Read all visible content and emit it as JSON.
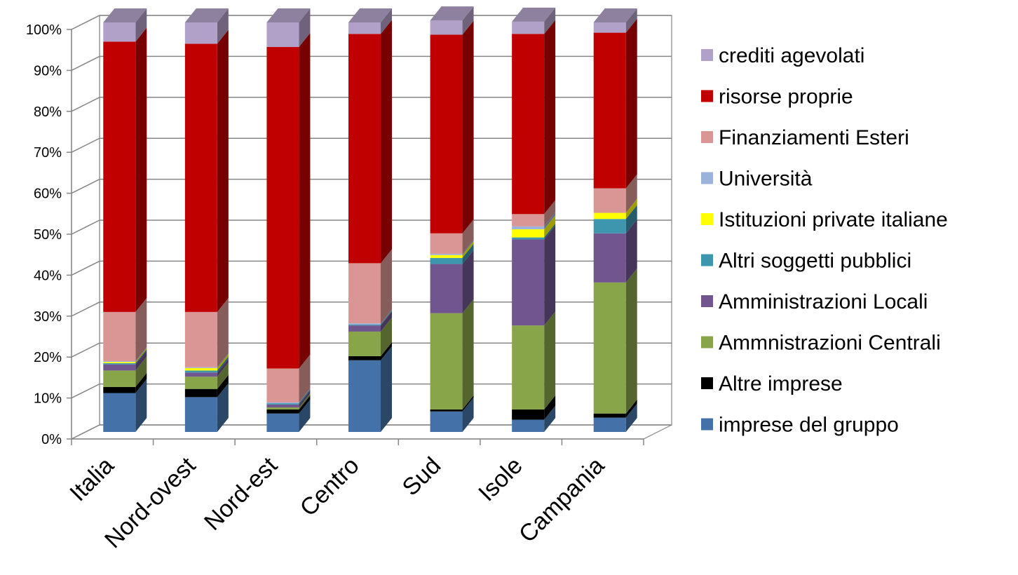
{
  "chart_data": {
    "type": "bar",
    "stacked": true,
    "percent_stacked": true,
    "three_d": true,
    "categories": [
      "Italia",
      "Nord-ovest",
      "Nord-est",
      "Centro",
      "Sud",
      "Isole",
      "Campania"
    ],
    "y_ticks": [
      "0%",
      "10%",
      "20%",
      "30%",
      "40%",
      "50%",
      "60%",
      "70%",
      "80%",
      "90%",
      "100%"
    ],
    "ylim": [
      0,
      100
    ],
    "grid": true,
    "legend_position": "right",
    "series": [
      {
        "name": "imprese del gruppo",
        "color": "#4472A8",
        "values": [
          9.5,
          8.5,
          4.5,
          17.5,
          5,
          3,
          3.5
        ]
      },
      {
        "name": "Altre imprese",
        "color": "#000000",
        "values": [
          1.5,
          2,
          1,
          1,
          0.5,
          2.5,
          1
        ]
      },
      {
        "name": "Ammnistrazioni Centrali",
        "color": "#88A54A",
        "values": [
          4,
          3,
          0.5,
          6,
          23.5,
          20.5,
          32
        ]
      },
      {
        "name": "Amministrazioni Locali",
        "color": "#70558E",
        "values": [
          1.5,
          1,
          0.7,
          1.5,
          12,
          21,
          12
        ]
      },
      {
        "name": "Altri soggetti pubblici",
        "color": "#3E96AE",
        "values": [
          0.3,
          0.5,
          0.3,
          0.2,
          1.5,
          0.5,
          3.5
        ]
      },
      {
        "name": "Istituzioni private italiane",
        "color": "#FFFF00",
        "values": [
          0.3,
          0.6,
          0,
          0,
          0.7,
          2,
          1.5
        ]
      },
      {
        "name": "Università",
        "color": "#9BB2DB",
        "values": [
          0.2,
          0.2,
          0.2,
          0.3,
          0.3,
          0.7,
          0
        ]
      },
      {
        "name": "Finanziamenti Esteri",
        "color": "#D99694",
        "values": [
          12,
          13.5,
          8.3,
          14.7,
          5,
          3,
          6
        ]
      },
      {
        "name": "risorse proprie",
        "color": "#C00000",
        "values": [
          66,
          65.5,
          78.5,
          56,
          48.5,
          44,
          38
        ]
      },
      {
        "name": "crediti agevolati",
        "color": "#B1A0C7",
        "values": [
          4.7,
          5.2,
          6,
          2.8,
          3.5,
          3,
          2.5
        ]
      }
    ]
  }
}
